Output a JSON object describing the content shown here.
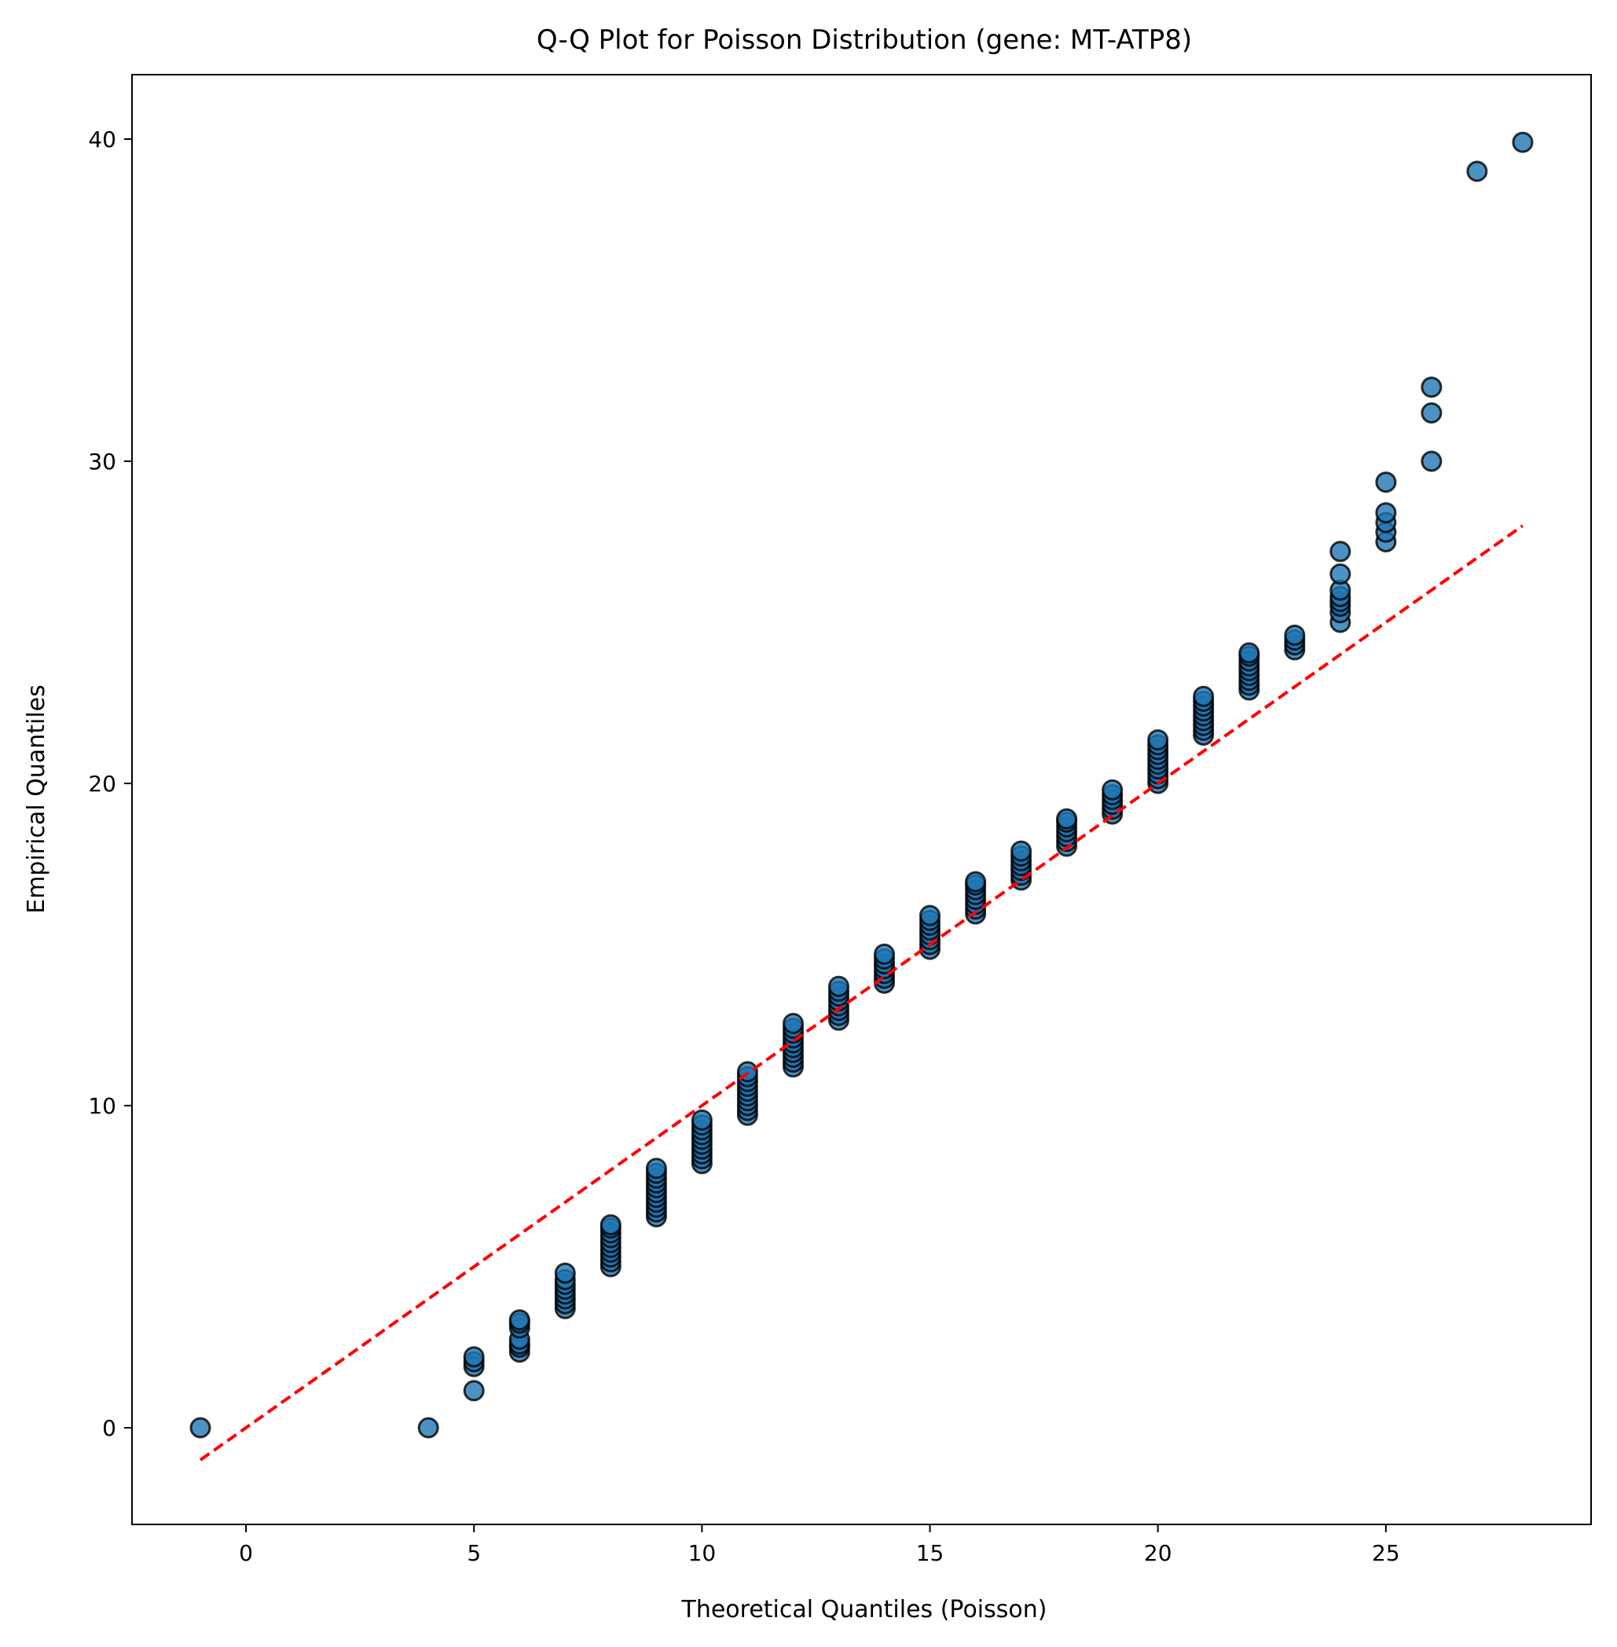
{
  "chart_data": {
    "type": "scatter",
    "title": "Q-Q Plot for Poisson Distribution (gene: MT-ATP8)",
    "xlabel": "Theoretical Quantiles (Poisson)",
    "ylabel": "Empirical Quantiles",
    "xlim": [
      -2.5,
      29.5
    ],
    "ylim": [
      -3.0,
      42.0
    ],
    "xticks": [
      0,
      5,
      10,
      15,
      20,
      25
    ],
    "yticks": [
      0,
      10,
      20,
      30,
      40
    ],
    "grid": false,
    "legend": "none",
    "marker_color": "#1f77b4",
    "marker_edge_color": "#000000",
    "reference_line": {
      "x": [
        -1,
        28
      ],
      "y": [
        -1,
        28
      ],
      "color": "#ff0000",
      "style": "dashed"
    },
    "series": [
      {
        "points": [
          [
            -1,
            0
          ],
          [
            4,
            0
          ],
          [
            5,
            1.15
          ],
          [
            5,
            1.9
          ],
          [
            5,
            2.05
          ],
          [
            5,
            2.2
          ],
          [
            6,
            2.35
          ],
          [
            6,
            2.5
          ],
          [
            6,
            2.6
          ],
          [
            6,
            2.75
          ],
          [
            6,
            3.1
          ],
          [
            6,
            3.25
          ],
          [
            6,
            3.35
          ],
          [
            7,
            3.7
          ],
          [
            7,
            3.85
          ],
          [
            7,
            4.0
          ],
          [
            7,
            4.15
          ],
          [
            7,
            4.3
          ],
          [
            7,
            4.45
          ],
          [
            7,
            4.6
          ],
          [
            7,
            4.8
          ],
          [
            8,
            5.0
          ],
          [
            8,
            5.15
          ],
          [
            8,
            5.3
          ],
          [
            8,
            5.45
          ],
          [
            8,
            5.6
          ],
          [
            8,
            5.75
          ],
          [
            8,
            5.9
          ],
          [
            8,
            6.05
          ],
          [
            8,
            6.2
          ],
          [
            8,
            6.3
          ],
          [
            9,
            6.55
          ],
          [
            9,
            6.7
          ],
          [
            9,
            6.85
          ],
          [
            9,
            7.0
          ],
          [
            9,
            7.15
          ],
          [
            9,
            7.3
          ],
          [
            9,
            7.45
          ],
          [
            9,
            7.6
          ],
          [
            9,
            7.75
          ],
          [
            9,
            7.9
          ],
          [
            9,
            8.05
          ],
          [
            10,
            8.2
          ],
          [
            10,
            8.35
          ],
          [
            10,
            8.5
          ],
          [
            10,
            8.65
          ],
          [
            10,
            8.8
          ],
          [
            10,
            8.95
          ],
          [
            10,
            9.1
          ],
          [
            10,
            9.25
          ],
          [
            10,
            9.4
          ],
          [
            10,
            9.55
          ],
          [
            11,
            9.7
          ],
          [
            11,
            9.85
          ],
          [
            11,
            10.0
          ],
          [
            11,
            10.15
          ],
          [
            11,
            10.3
          ],
          [
            11,
            10.45
          ],
          [
            11,
            10.6
          ],
          [
            11,
            10.75
          ],
          [
            11,
            10.9
          ],
          [
            11,
            11.05
          ],
          [
            12,
            11.2
          ],
          [
            12,
            11.35
          ],
          [
            12,
            11.5
          ],
          [
            12,
            11.65
          ],
          [
            12,
            11.8
          ],
          [
            12,
            11.95
          ],
          [
            12,
            12.1
          ],
          [
            12,
            12.25
          ],
          [
            12,
            12.4
          ],
          [
            12,
            12.55
          ],
          [
            13,
            12.65
          ],
          [
            13,
            12.8
          ],
          [
            13,
            12.95
          ],
          [
            13,
            13.1
          ],
          [
            13,
            13.25
          ],
          [
            13,
            13.4
          ],
          [
            13,
            13.55
          ],
          [
            13,
            13.7
          ],
          [
            14,
            13.8
          ],
          [
            14,
            13.95
          ],
          [
            14,
            14.1
          ],
          [
            14,
            14.25
          ],
          [
            14,
            14.4
          ],
          [
            14,
            14.55
          ],
          [
            14,
            14.7
          ],
          [
            15,
            14.85
          ],
          [
            15,
            15.0
          ],
          [
            15,
            15.15
          ],
          [
            15,
            15.3
          ],
          [
            15,
            15.45
          ],
          [
            15,
            15.6
          ],
          [
            15,
            15.75
          ],
          [
            15,
            15.9
          ],
          [
            16,
            15.95
          ],
          [
            16,
            16.1
          ],
          [
            16,
            16.25
          ],
          [
            16,
            16.4
          ],
          [
            16,
            16.55
          ],
          [
            16,
            16.7
          ],
          [
            16,
            16.85
          ],
          [
            16,
            16.95
          ],
          [
            17,
            17.0
          ],
          [
            17,
            17.15
          ],
          [
            17,
            17.3
          ],
          [
            17,
            17.45
          ],
          [
            17,
            17.6
          ],
          [
            17,
            17.75
          ],
          [
            17,
            17.9
          ],
          [
            18,
            18.05
          ],
          [
            18,
            18.2
          ],
          [
            18,
            18.35
          ],
          [
            18,
            18.5
          ],
          [
            18,
            18.65
          ],
          [
            18,
            18.8
          ],
          [
            18,
            18.9
          ],
          [
            19,
            19.05
          ],
          [
            19,
            19.2
          ],
          [
            19,
            19.35
          ],
          [
            19,
            19.5
          ],
          [
            19,
            19.65
          ],
          [
            19,
            19.8
          ],
          [
            20,
            20.0
          ],
          [
            20,
            20.15
          ],
          [
            20,
            20.3
          ],
          [
            20,
            20.45
          ],
          [
            20,
            20.6
          ],
          [
            20,
            20.75
          ],
          [
            20,
            20.9
          ],
          [
            20,
            21.05
          ],
          [
            20,
            21.2
          ],
          [
            20,
            21.35
          ],
          [
            21,
            21.5
          ],
          [
            21,
            21.65
          ],
          [
            21,
            21.8
          ],
          [
            21,
            21.95
          ],
          [
            21,
            22.1
          ],
          [
            21,
            22.25
          ],
          [
            21,
            22.4
          ],
          [
            21,
            22.55
          ],
          [
            21,
            22.7
          ],
          [
            22,
            22.9
          ],
          [
            22,
            23.05
          ],
          [
            22,
            23.2
          ],
          [
            22,
            23.35
          ],
          [
            22,
            23.5
          ],
          [
            22,
            23.65
          ],
          [
            22,
            23.8
          ],
          [
            22,
            23.95
          ],
          [
            22,
            24.05
          ],
          [
            23,
            24.15
          ],
          [
            23,
            24.3
          ],
          [
            23,
            24.45
          ],
          [
            23,
            24.6
          ],
          [
            24,
            25.0
          ],
          [
            24,
            25.3
          ],
          [
            24,
            25.5
          ],
          [
            24,
            25.65
          ],
          [
            24,
            25.8
          ],
          [
            24,
            26.0
          ],
          [
            24,
            26.5
          ],
          [
            24,
            27.2
          ],
          [
            25,
            27.5
          ],
          [
            25,
            27.8
          ],
          [
            25,
            28.1
          ],
          [
            25,
            28.4
          ],
          [
            25,
            29.35
          ],
          [
            26,
            30.0
          ],
          [
            26,
            31.5
          ],
          [
            26,
            32.3
          ],
          [
            27,
            39.0
          ],
          [
            28,
            39.9
          ]
        ]
      }
    ]
  }
}
